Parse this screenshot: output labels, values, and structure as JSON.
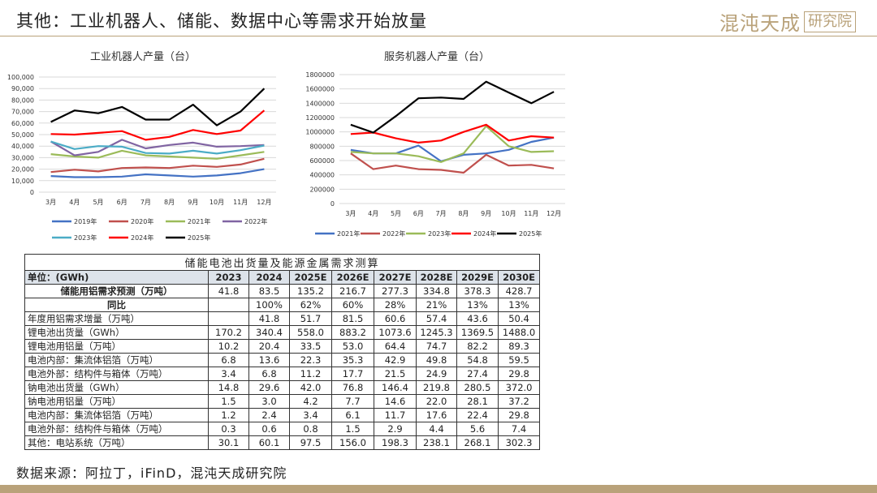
{
  "page": {
    "title": "其他：工业机器人、储能、数据中心等需求开始放量"
  },
  "logo": {
    "main": "混沌天成",
    "box": "研究院"
  },
  "footer": {
    "source": "数据来源：阿拉丁，iFinD，混沌天成研究院"
  },
  "chart_data": [
    {
      "type": "line",
      "title": "工业机器人产量（台）",
      "categories": [
        "3月",
        "4月",
        "5月",
        "6月",
        "7月",
        "8月",
        "9月",
        "10月",
        "11月",
        "12月"
      ],
      "yticks": [
        "0",
        "10,000",
        "20,000",
        "30,000",
        "40,000",
        "50,000",
        "60,000",
        "70,000",
        "80,000",
        "90,000",
        "100,000"
      ],
      "ylim": [
        0,
        100000
      ],
      "series": [
        {
          "name": "2019年",
          "color": "#4472c4",
          "values": [
            14000,
            13000,
            13000,
            13500,
            15500,
            14500,
            13500,
            14500,
            16500,
            20000
          ]
        },
        {
          "name": "2020年",
          "color": "#c0504d",
          "values": [
            17500,
            19500,
            18000,
            21000,
            21500,
            21000,
            23000,
            22000,
            24000,
            29000
          ]
        },
        {
          "name": "2021年",
          "color": "#9bbb59",
          "values": [
            33000,
            31000,
            30000,
            36000,
            32000,
            31000,
            30000,
            29000,
            32000,
            35000
          ]
        },
        {
          "name": "2022年",
          "color": "#8064a2",
          "values": [
            44000,
            32000,
            35000,
            45500,
            38000,
            41000,
            43000,
            39500,
            40000,
            41000
          ]
        },
        {
          "name": "2023年",
          "color": "#4bacc6",
          "values": [
            44000,
            37500,
            40000,
            39500,
            34000,
            33500,
            36000,
            33500,
            36500,
            40500
          ]
        },
        {
          "name": "2024年",
          "color": "#ff0000",
          "values": [
            50500,
            50000,
            51500,
            53000,
            45500,
            48000,
            54000,
            50500,
            53500,
            71000
          ]
        },
        {
          "name": "2025年",
          "color": "#000000",
          "values": [
            61000,
            71000,
            68500,
            74000,
            63000,
            63000,
            76000,
            58000,
            70000,
            90000
          ]
        }
      ]
    },
    {
      "type": "line",
      "title": "服务机器人产量（台）",
      "categories": [
        "3月",
        "4月",
        "5月",
        "6月",
        "7月",
        "8月",
        "9月",
        "10月",
        "11月",
        "12月"
      ],
      "yticks": [
        "0",
        "200000",
        "400000",
        "600000",
        "800000",
        "1000000",
        "1200000",
        "1400000",
        "1600000",
        "1800000"
      ],
      "ylim": [
        0,
        1800000
      ],
      "series": [
        {
          "name": "2021年",
          "color": "#4472c4",
          "values": [
            750000,
            700000,
            700000,
            810000,
            590000,
            680000,
            700000,
            750000,
            860000,
            920000
          ]
        },
        {
          "name": "2022年",
          "color": "#c0504d",
          "values": [
            700000,
            480000,
            530000,
            480000,
            470000,
            430000,
            680000,
            530000,
            540000,
            490000
          ]
        },
        {
          "name": "2023年",
          "color": "#9bbb59",
          "values": [
            720000,
            700000,
            700000,
            660000,
            580000,
            700000,
            1080000,
            800000,
            720000,
            730000
          ]
        },
        {
          "name": "2024年",
          "color": "#ff0000",
          "values": [
            970000,
            990000,
            910000,
            850000,
            880000,
            1000000,
            1100000,
            880000,
            940000,
            920000
          ]
        },
        {
          "name": "2025年",
          "color": "#000000",
          "values": [
            1100000,
            990000,
            1220000,
            1470000,
            1480000,
            1460000,
            1700000,
            1550000,
            1400000,
            1560000
          ]
        }
      ]
    },
    {
      "type": "table",
      "title": "储能电池出货量及能源金属需求测算",
      "columns": [
        "单位：(GWh)",
        "2023",
        "2024",
        "2025E",
        "2026E",
        "2027E",
        "2028E",
        "2029E",
        "2030E"
      ],
      "rows": [
        [
          "储能用铝需求预测（万吨）",
          "41.8",
          "83.5",
          "135.2",
          "216.7",
          "277.3",
          "334.8",
          "378.3",
          "428.7"
        ],
        [
          "同比",
          "",
          "100%",
          "62%",
          "60%",
          "28%",
          "21%",
          "13%",
          "13%"
        ],
        [
          "年度用铝需求增量（万吨）",
          "",
          "41.8",
          "51.7",
          "81.5",
          "60.6",
          "57.4",
          "43.6",
          "50.4"
        ],
        [
          "锂电池出货量（GWh）",
          "170.2",
          "340.4",
          "558.0",
          "883.2",
          "1073.6",
          "1245.3",
          "1369.5",
          "1488.0"
        ],
        [
          "锂电池用铝量（万吨）",
          "10.2",
          "20.4",
          "33.5",
          "53.0",
          "64.4",
          "74.7",
          "82.2",
          "89.3"
        ],
        [
          "电池内部：集流体铝箔（万吨）",
          "6.8",
          "13.6",
          "22.3",
          "35.3",
          "42.9",
          "49.8",
          "54.8",
          "59.5"
        ],
        [
          "电池外部：结构件与箱体（万吨）",
          "3.4",
          "6.8",
          "11.2",
          "17.7",
          "21.5",
          "24.9",
          "27.4",
          "29.8"
        ],
        [
          "钠电池出货量（GWh）",
          "14.8",
          "29.6",
          "42.0",
          "76.8",
          "146.4",
          "219.8",
          "280.5",
          "372.0"
        ],
        [
          "钠电池用铝量（万吨）",
          "1.5",
          "3.0",
          "4.2",
          "7.7",
          "14.6",
          "22.0",
          "28.1",
          "37.2"
        ],
        [
          "电池内部：集流体铝箔（万吨）",
          "1.2",
          "2.4",
          "3.4",
          "6.1",
          "11.7",
          "17.6",
          "22.4",
          "29.8"
        ],
        [
          "电池外部：结构件与箱体（万吨）",
          "0.3",
          "0.6",
          "0.8",
          "1.5",
          "2.9",
          "4.4",
          "5.6",
          "7.4"
        ],
        [
          "其他：电站系统（万吨）",
          "30.1",
          "60.1",
          "97.5",
          "156.0",
          "198.3",
          "238.1",
          "268.1",
          "302.3"
        ]
      ]
    }
  ]
}
